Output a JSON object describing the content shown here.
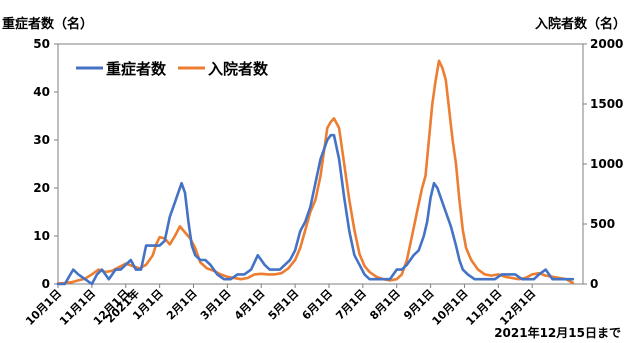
{
  "chart_data": {
    "type": "line",
    "left_axis_title": "重症者数（名）",
    "right_axis_title": "入院者数（名）",
    "y_left": {
      "min": 0,
      "max": 50,
      "ticks": [
        0,
        10,
        20,
        30,
        40,
        50
      ]
    },
    "y_right": {
      "min": 0,
      "max": 2000,
      "ticks": [
        0,
        500,
        1000,
        1500,
        2000
      ]
    },
    "x_range": [
      0,
      15.5
    ],
    "x_ticks": [
      {
        "label": "10月1日",
        "x": 0
      },
      {
        "label": "11月1日",
        "x": 1
      },
      {
        "label": "12月1日",
        "x": 2
      },
      {
        "label": "2021年",
        "x": 2.3
      },
      {
        "label": "1月1日",
        "x": 3
      },
      {
        "label": "2月1日",
        "x": 4
      },
      {
        "label": "3月1日",
        "x": 5
      },
      {
        "label": "4月1日",
        "x": 6
      },
      {
        "label": "5月1日",
        "x": 7
      },
      {
        "label": "6月1日",
        "x": 8
      },
      {
        "label": "7月1日",
        "x": 9
      },
      {
        "label": "8月1日",
        "x": 10
      },
      {
        "label": "9月1日",
        "x": 11
      },
      {
        "label": "10月1日",
        "x": 12
      },
      {
        "label": "11月1日",
        "x": 13
      },
      {
        "label": "12月1日",
        "x": 14
      }
    ],
    "legend_placement": "top-left",
    "footnote": "2021年12月15日まで",
    "series": [
      {
        "name": "重症者数",
        "axis": "left",
        "color": "#4472c4",
        "x": [
          0,
          0.2,
          0.45,
          0.6,
          0.8,
          1.0,
          1.15,
          1.3,
          1.5,
          1.7,
          1.85,
          2.0,
          2.15,
          2.3,
          2.45,
          2.6,
          2.75,
          2.9,
          3.0,
          3.15,
          3.3,
          3.45,
          3.55,
          3.65,
          3.75,
          3.85,
          3.95,
          4.05,
          4.2,
          4.35,
          4.5,
          4.7,
          4.9,
          5.1,
          5.3,
          5.5,
          5.7,
          5.9,
          6.0,
          6.1,
          6.25,
          6.4,
          6.55,
          6.7,
          6.85,
          7.0,
          7.15,
          7.3,
          7.45,
          7.6,
          7.75,
          7.85,
          7.95,
          8.05,
          8.15,
          8.3,
          8.45,
          8.6,
          8.75,
          8.9,
          9.05,
          9.2,
          9.4,
          9.6,
          9.8,
          10.0,
          10.15,
          10.3,
          10.5,
          10.65,
          10.8,
          10.9,
          11.0,
          11.1,
          11.2,
          11.3,
          11.45,
          11.6,
          11.75,
          11.85,
          11.95,
          12.1,
          12.3,
          12.5,
          12.7,
          12.9,
          13.1,
          13.3,
          13.5,
          13.7,
          13.9,
          14.05,
          14.2,
          14.4,
          14.6,
          14.8,
          15.0,
          15.2
        ],
        "values": [
          0,
          0,
          3,
          2,
          1,
          0,
          2,
          3,
          1,
          3,
          3,
          4,
          5,
          3,
          3,
          8,
          8,
          8,
          8,
          9,
          14,
          17,
          19,
          21,
          19,
          13,
          8,
          6,
          5,
          5,
          4,
          2,
          1,
          1,
          2,
          2,
          3,
          6,
          5,
          4,
          3,
          3,
          3,
          4,
          5,
          7,
          11,
          13,
          16,
          21,
          26,
          28,
          30,
          31,
          31,
          26,
          18,
          11,
          6,
          4,
          2,
          1,
          1,
          1,
          1,
          3,
          3,
          4,
          6,
          7,
          10,
          13,
          18,
          21,
          20,
          18,
          15,
          12,
          8,
          5,
          3,
          2,
          1,
          1,
          1,
          1,
          2,
          2,
          2,
          1,
          1,
          1,
          2,
          3,
          1,
          1,
          1,
          1
        ]
      },
      {
        "name": "入院者数",
        "axis": "right",
        "color": "#ed7d31",
        "x": [
          0,
          0.2,
          0.4,
          0.6,
          0.8,
          1.0,
          1.2,
          1.4,
          1.6,
          1.8,
          2.0,
          2.2,
          2.4,
          2.6,
          2.8,
          2.9,
          3.0,
          3.15,
          3.3,
          3.45,
          3.6,
          3.75,
          3.9,
          4.05,
          4.2,
          4.4,
          4.6,
          4.8,
          5.0,
          5.2,
          5.4,
          5.6,
          5.8,
          6.0,
          6.2,
          6.4,
          6.6,
          6.8,
          7.0,
          7.15,
          7.3,
          7.45,
          7.6,
          7.75,
          7.85,
          7.95,
          8.05,
          8.15,
          8.3,
          8.45,
          8.6,
          8.75,
          8.9,
          9.05,
          9.2,
          9.4,
          9.6,
          9.8,
          10.0,
          10.15,
          10.3,
          10.45,
          10.6,
          10.75,
          10.85,
          10.95,
          11.05,
          11.15,
          11.25,
          11.35,
          11.45,
          11.55,
          11.65,
          11.75,
          11.85,
          11.95,
          12.05,
          12.2,
          12.4,
          12.6,
          12.8,
          13.0,
          13.2,
          13.4,
          13.6,
          13.8,
          14.0,
          14.2,
          14.4,
          14.6,
          14.8,
          15.0,
          15.2
        ],
        "values": [
          5,
          8,
          15,
          30,
          45,
          80,
          120,
          100,
          110,
          140,
          170,
          150,
          130,
          160,
          240,
          330,
          390,
          380,
          330,
          400,
          480,
          430,
          380,
          300,
          180,
          130,
          110,
          80,
          60,
          50,
          40,
          50,
          80,
          85,
          80,
          80,
          90,
          130,
          200,
          300,
          450,
          600,
          700,
          900,
          1100,
          1300,
          1350,
          1380,
          1300,
          1000,
          700,
          450,
          250,
          150,
          100,
          60,
          40,
          30,
          40,
          80,
          200,
          400,
          600,
          800,
          900,
          1200,
          1500,
          1700,
          1860,
          1800,
          1700,
          1450,
          1200,
          1000,
          700,
          450,
          300,
          200,
          120,
          80,
          70,
          80,
          60,
          50,
          40,
          50,
          80,
          90,
          70,
          60,
          50,
          40,
          10
        ]
      }
    ]
  }
}
